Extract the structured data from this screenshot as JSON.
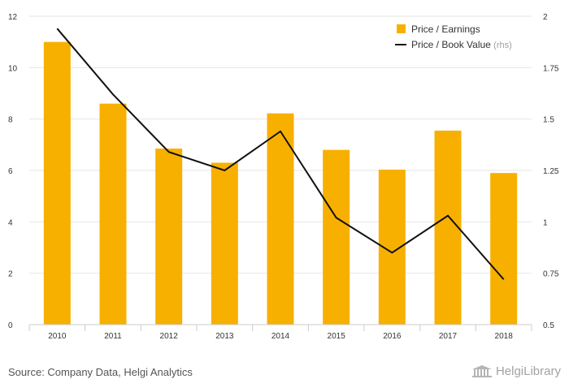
{
  "chart_data": {
    "type": "bar",
    "categories": [
      "2010",
      "2011",
      "2012",
      "2013",
      "2014",
      "2015",
      "2016",
      "2017",
      "2018"
    ],
    "series": [
      {
        "name": "Price / Earnings",
        "type": "bar",
        "axis": "left",
        "color": "#f8b000",
        "values": [
          11.0,
          8.6,
          6.85,
          6.3,
          8.22,
          6.8,
          6.03,
          7.55,
          5.9
        ]
      },
      {
        "name": "Price / Book Value",
        "name_suffix": "(rhs)",
        "type": "line",
        "axis": "right",
        "color": "#111111",
        "values": [
          1.94,
          1.62,
          1.34,
          1.25,
          1.44,
          1.02,
          0.85,
          1.03,
          0.72
        ]
      }
    ],
    "y_left": {
      "range": [
        0,
        12
      ],
      "ticks": [
        "0",
        "2",
        "4",
        "6",
        "8",
        "10",
        "12"
      ]
    },
    "y_right": {
      "range": [
        0.5,
        2
      ],
      "ticks": [
        "0.5",
        "0.75",
        "1",
        "1.25",
        "1.5",
        "1.75",
        "2"
      ]
    },
    "grid": true,
    "legend_position": "top-right",
    "title": "",
    "xlabel": "",
    "ylabel": ""
  },
  "footer": {
    "source": "Source: Company Data, Helgi Analytics",
    "brand": "HelgiLibrary",
    "brand_icon": "library-building-icon"
  },
  "colors": {
    "grid": "#e6e6e6",
    "axis": "#cccccc",
    "bar": "#f8b000",
    "line": "#111111"
  }
}
